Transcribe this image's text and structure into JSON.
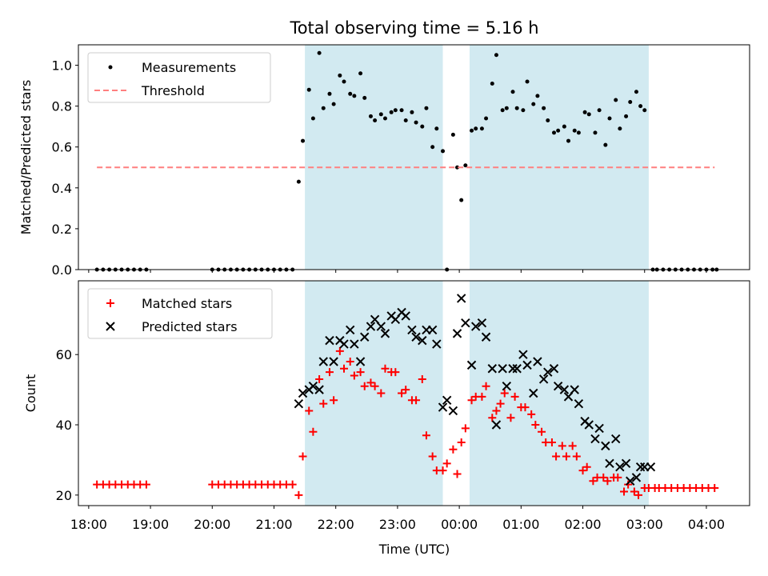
{
  "chart_data": [
    {
      "type": "scatter",
      "title": "Total observing time = 5.16 h",
      "xlabel": "",
      "ylabel": "Matched/Predicted stars",
      "ylim": [
        0,
        1.1
      ],
      "xlim": [
        "17:50",
        "04:42"
      ],
      "yticks": [
        "0.0",
        "0.2",
        "0.4",
        "0.6",
        "0.8",
        "1.0"
      ],
      "grid": false,
      "legend_position": "top-left",
      "shaded_windows": [
        [
          "21:30",
          "23:44"
        ],
        [
          "00:10",
          "03:04"
        ]
      ],
      "shade_color": "#add8e6",
      "series": [
        {
          "name": "Measurements",
          "marker": "dot",
          "color": "#000000",
          "x": [
            "18:08",
            "18:14",
            "18:20",
            "18:26",
            "18:32",
            "18:38",
            "18:44",
            "18:50",
            "18:56",
            "20:00",
            "20:06",
            "20:12",
            "20:18",
            "20:24",
            "20:30",
            "20:36",
            "20:42",
            "20:48",
            "20:54",
            "21:00",
            "21:06",
            "21:12",
            "21:18",
            "21:24",
            "21:28",
            "21:34",
            "21:38",
            "21:44",
            "21:48",
            "21:54",
            "21:58",
            "22:04",
            "22:08",
            "22:14",
            "22:18",
            "22:24",
            "22:28",
            "22:34",
            "22:38",
            "22:44",
            "22:48",
            "22:54",
            "22:58",
            "23:04",
            "23:08",
            "23:14",
            "23:18",
            "23:24",
            "23:28",
            "23:34",
            "23:38",
            "23:44",
            "23:48",
            "23:54",
            "23:58",
            "00:02",
            "00:06",
            "00:12",
            "00:16",
            "00:22",
            "00:26",
            "00:32",
            "00:36",
            "00:42",
            "00:46",
            "00:52",
            "00:56",
            "01:02",
            "01:06",
            "01:12",
            "01:16",
            "01:22",
            "01:26",
            "01:32",
            "01:36",
            "01:42",
            "01:46",
            "01:52",
            "01:56",
            "02:02",
            "02:06",
            "02:12",
            "02:16",
            "02:22",
            "02:26",
            "02:32",
            "02:36",
            "02:42",
            "02:46",
            "02:52",
            "02:56",
            "03:00",
            "03:08",
            "03:12",
            "03:18",
            "03:24",
            "03:30",
            "03:36",
            "03:42",
            "03:48",
            "03:54",
            "04:00",
            "04:06",
            "04:10"
          ],
          "y": [
            0,
            0,
            0,
            0,
            0,
            0,
            0,
            0,
            0,
            0,
            0,
            0,
            0,
            0,
            0,
            0,
            0,
            0,
            0,
            0,
            0,
            0,
            0,
            0.43,
            0.63,
            0.88,
            0.74,
            1.06,
            0.79,
            0.86,
            0.81,
            0.95,
            0.92,
            0.86,
            0.85,
            0.96,
            0.84,
            0.75,
            0.73,
            0.76,
            0.74,
            0.77,
            0.78,
            0.78,
            0.73,
            0.77,
            0.72,
            0.7,
            0.79,
            0.6,
            0.69,
            0.58,
            0,
            0.66,
            0.5,
            0.34,
            0.51,
            0.68,
            0.69,
            0.69,
            0.74,
            0.91,
            1.05,
            0.78,
            0.79,
            0.87,
            0.79,
            0.78,
            0.92,
            0.81,
            0.85,
            0.79,
            0.73,
            0.67,
            0.68,
            0.7,
            0.63,
            0.68,
            0.67,
            0.77,
            0.76,
            0.67,
            0.78,
            0.61,
            0.74,
            0.83,
            0.69,
            0.75,
            0.82,
            0.87,
            0.8,
            0.78,
            0,
            0,
            0,
            0,
            0,
            0,
            0,
            0,
            0,
            0,
            0,
            0
          ]
        },
        {
          "name": "Threshold",
          "style": "dashed",
          "color": "#ff7f7f",
          "x": [
            "18:08",
            "04:08"
          ],
          "y": [
            0.5,
            0.5
          ]
        }
      ]
    },
    {
      "type": "scatter",
      "title": "",
      "xlabel": "Time (UTC)",
      "ylabel": "Count",
      "ylim": [
        17,
        81
      ],
      "xlim": [
        "17:50",
        "04:42"
      ],
      "yticks": [
        "20",
        "40",
        "60"
      ],
      "xticks": [
        "18:00",
        "19:00",
        "20:00",
        "21:00",
        "22:00",
        "23:00",
        "00:00",
        "01:00",
        "02:00",
        "03:00",
        "04:00"
      ],
      "grid": false,
      "legend_position": "top-left",
      "shaded_windows": [
        [
          "21:30",
          "23:44"
        ],
        [
          "00:10",
          "03:04"
        ]
      ],
      "shade_color": "#add8e6",
      "series": [
        {
          "name": "Matched stars",
          "marker": "plus",
          "color": "#ff0000",
          "x": [
            "18:08",
            "18:14",
            "18:20",
            "18:26",
            "18:32",
            "18:38",
            "18:44",
            "18:50",
            "18:56",
            "20:00",
            "20:06",
            "20:12",
            "20:18",
            "20:24",
            "20:30",
            "20:36",
            "20:42",
            "20:48",
            "20:54",
            "21:00",
            "21:06",
            "21:12",
            "21:18",
            "21:24",
            "21:28",
            "21:34",
            "21:38",
            "21:44",
            "21:48",
            "21:54",
            "21:58",
            "22:04",
            "22:08",
            "22:14",
            "22:18",
            "22:24",
            "22:28",
            "22:34",
            "22:38",
            "22:44",
            "22:48",
            "22:54",
            "22:58",
            "23:04",
            "23:08",
            "23:14",
            "23:18",
            "23:24",
            "23:28",
            "23:34",
            "23:38",
            "23:44",
            "23:48",
            "23:54",
            "23:58",
            "00:02",
            "00:06",
            "00:12",
            "00:16",
            "00:22",
            "00:26",
            "00:32",
            "00:36",
            "00:40",
            "00:44",
            "00:50",
            "00:54",
            "01:00",
            "01:04",
            "01:10",
            "01:14",
            "01:20",
            "01:24",
            "01:30",
            "01:34",
            "01:40",
            "01:44",
            "01:50",
            "01:54",
            "02:00",
            "02:04",
            "02:10",
            "02:14",
            "02:20",
            "02:24",
            "02:30",
            "02:34",
            "02:40",
            "02:44",
            "02:50",
            "02:54",
            "03:00",
            "03:04",
            "03:10",
            "03:14",
            "03:20",
            "03:26",
            "03:32",
            "03:38",
            "03:44",
            "03:50",
            "03:56",
            "04:02",
            "04:08"
          ],
          "y": [
            23,
            23,
            23,
            23,
            23,
            23,
            23,
            23,
            23,
            23,
            23,
            23,
            23,
            23,
            23,
            23,
            23,
            23,
            23,
            23,
            23,
            23,
            23,
            20,
            31,
            44,
            38,
            53,
            46,
            55,
            47,
            61,
            56,
            58,
            54,
            55,
            51,
            52,
            51,
            49,
            56,
            55,
            55,
            49,
            50,
            47,
            47,
            53,
            37,
            31,
            27,
            27,
            29,
            33,
            26,
            35,
            39,
            47,
            48,
            48,
            51,
            42,
            44,
            46,
            49,
            42,
            48,
            45,
            45,
            43,
            40,
            38,
            35,
            35,
            31,
            34,
            31,
            34,
            31,
            27,
            28,
            24,
            25,
            25,
            24,
            25,
            25,
            21,
            23,
            21,
            20,
            22,
            22,
            22,
            22,
            22,
            22,
            22,
            22,
            22,
            22,
            22,
            22,
            22
          ]
        },
        {
          "name": "Predicted stars",
          "marker": "x",
          "color": "#000000",
          "x": [
            "21:24",
            "21:28",
            "21:34",
            "21:38",
            "21:44",
            "21:48",
            "21:54",
            "21:58",
            "22:04",
            "22:08",
            "22:14",
            "22:18",
            "22:24",
            "22:28",
            "22:34",
            "22:38",
            "22:44",
            "22:48",
            "22:54",
            "22:58",
            "23:04",
            "23:08",
            "23:14",
            "23:18",
            "23:24",
            "23:28",
            "23:34",
            "23:38",
            "23:44",
            "23:48",
            "23:54",
            "23:58",
            "00:02",
            "00:06",
            "00:12",
            "00:16",
            "00:22",
            "00:26",
            "00:32",
            "00:36",
            "00:42",
            "00:46",
            "00:52",
            "00:56",
            "01:02",
            "01:06",
            "01:12",
            "01:16",
            "01:22",
            "01:26",
            "01:32",
            "01:36",
            "01:42",
            "01:46",
            "01:52",
            "01:56",
            "02:02",
            "02:06",
            "02:12",
            "02:16",
            "02:22",
            "02:26",
            "02:32",
            "02:36",
            "02:42",
            "02:46",
            "02:52",
            "02:56",
            "03:00",
            "03:06"
          ],
          "y": [
            46,
            49,
            50,
            51,
            50,
            58,
            64,
            58,
            64,
            63,
            67,
            63,
            58,
            65,
            68,
            70,
            68,
            66,
            71,
            70,
            72,
            71,
            67,
            65,
            64,
            67,
            67,
            63,
            45,
            47,
            44,
            66,
            76,
            69,
            57,
            68,
            69,
            65,
            56,
            40,
            56,
            51,
            56,
            56,
            60,
            57,
            49,
            58,
            53,
            55,
            56,
            51,
            50,
            48,
            50,
            46,
            41,
            40,
            36,
            39,
            34,
            29,
            36,
            28,
            29,
            24,
            25,
            28,
            28,
            28
          ]
        }
      ]
    }
  ]
}
